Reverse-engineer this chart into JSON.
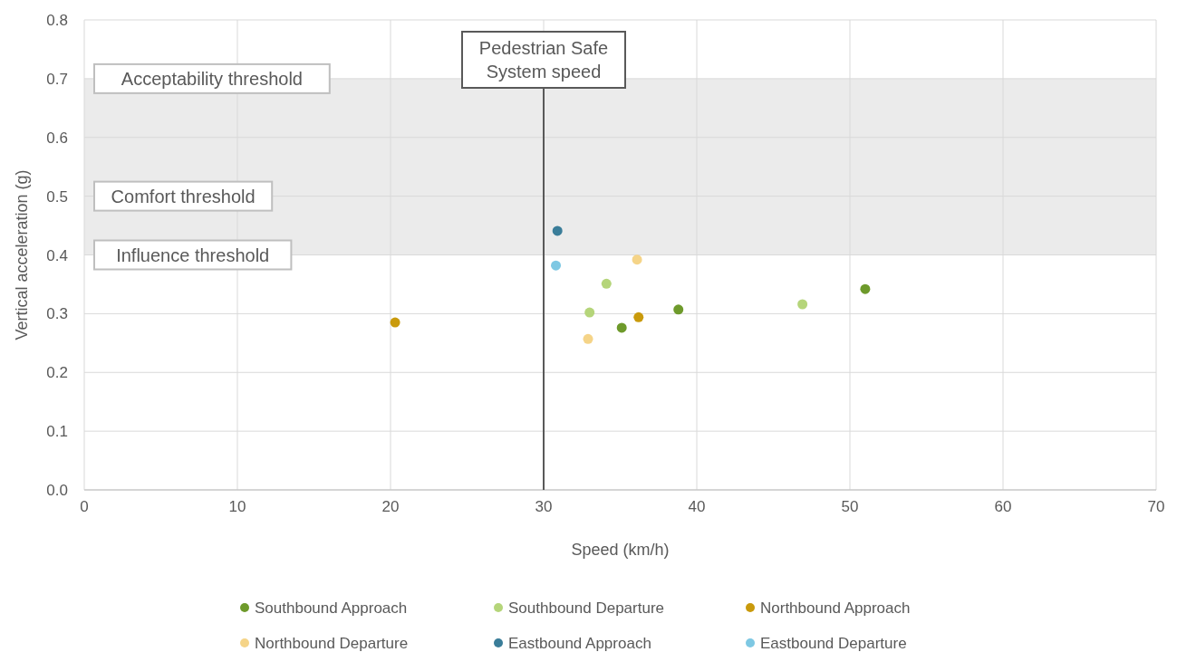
{
  "chart_data": {
    "type": "scatter",
    "xlabel": "Speed (km/h)",
    "ylabel": "Vertical acceleration (g)",
    "xlim": [
      0,
      70
    ],
    "xticks": [
      0,
      10,
      20,
      30,
      40,
      50,
      60,
      70
    ],
    "ylim": [
      0,
      0.8
    ],
    "yticks": [
      {
        "value": 0,
        "label": "0.0"
      },
      {
        "value": 0.1,
        "label": "0.1"
      },
      {
        "value": 0.2,
        "label": "0.2"
      },
      {
        "value": 0.3,
        "label": "0.3"
      },
      {
        "value": 0.4,
        "label": "0.4"
      },
      {
        "value": 0.5,
        "label": "0.5"
      },
      {
        "value": 0.6,
        "label": "0.6"
      },
      {
        "value": 0.7,
        "label": "0.7"
      },
      {
        "value": 0.8,
        "label": "0.8"
      }
    ],
    "grid": true,
    "legend": "bottom",
    "marker": "circle",
    "bands": [
      {
        "axis": "y",
        "from": 0.4,
        "to": 0.7,
        "color": "#ebebeb"
      }
    ],
    "ref_lines": [
      {
        "axis": "x",
        "value": 30,
        "label": "Pedestrian Safe System speed",
        "color": "#595959"
      }
    ],
    "annotations": [
      {
        "text": "Acceptability threshold",
        "y": 0.7
      },
      "Comfort threshold",
      {
        "text": "Influence threshold",
        "y": 0.4
      }
    ],
    "series": [
      {
        "name": "Southbound Approach",
        "color": "#6e9a2b",
        "x": [
          35.1,
          38.8,
          51.0
        ],
        "values": [
          0.276,
          0.307,
          0.342
        ]
      },
      {
        "name": "Southbound Departure",
        "color": "#b5d57a",
        "x": [
          34.1,
          33.0,
          46.9
        ],
        "values": [
          0.351,
          0.302,
          0.316
        ]
      },
      {
        "name": "Northbound Approach",
        "color": "#c99a0c",
        "x": [
          20.3,
          36.2
        ],
        "values": [
          0.285,
          0.294
        ]
      },
      {
        "name": "Northbound Departure",
        "color": "#f5d488",
        "x": [
          36.1,
          32.9
        ],
        "values": [
          0.392,
          0.257
        ]
      },
      {
        "name": "Eastbound Approach",
        "color": "#3a7d99",
        "x": [
          30.9
        ],
        "values": [
          0.441
        ]
      },
      {
        "name": "Eastbound Departure",
        "color": "#7ec8e3",
        "x": [
          30.8
        ],
        "values": [
          0.382
        ]
      }
    ]
  }
}
